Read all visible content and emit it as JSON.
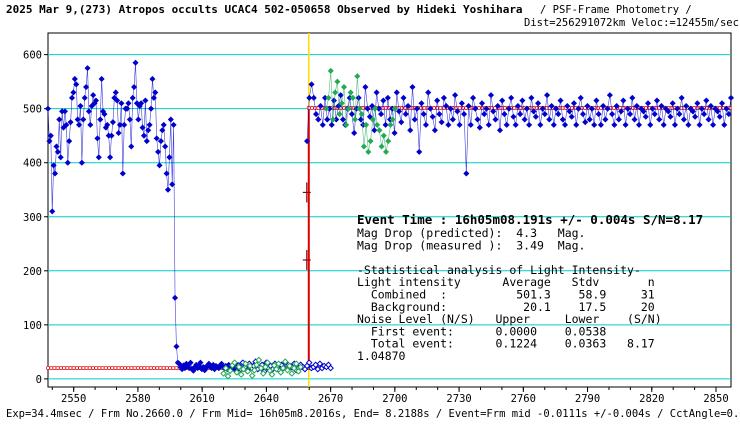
{
  "header": {
    "title": "2025 Mar 9,(273) Atropos occults UCAC4 502-050658 Observed by Hideki Yoshihara",
    "method": " / PSF-Frame Photometry /",
    "dist_veloc": "Dist=256291072km Veloc:=12455m/sec"
  },
  "event_time": "Event Time : 16h05m08.191s +/- 0.004s S/N=8.17",
  "stats_lines": [
    "Mag Drop (predicted):  4.3   Mag.",
    "Mag Drop (measured ):  3.49  Mag.",
    "",
    "-Statistical analysis of Light Intensity-",
    "Light intensity      Average   Stdv       n",
    "  Combined  :          501.3    58.9     31",
    "  Background:           20.1    17.5     20",
    "Noise Level (N/S)   Upper     Lower    (S/N)",
    "  First event:      0.0000    0.0538",
    "  Total event:      0.1224    0.0363   8.17",
    "1.04870"
  ],
  "footer": "Exp=34.4msec / Frm No.2660.0 / Frm Mid= 16h05m8.2016s, End= 8.2188s / Event=Frm mid -0.0111s +/-0.004s / CctAngle=0.00deg",
  "colors": {
    "main_series": "#0000cc",
    "comparison_series": "#22aa55",
    "model_line": "#dd0000",
    "gridlines": "#00cccc",
    "event_line": "#ffdd00"
  },
  "chart_data": {
    "type": "scatter",
    "xlim": [
      2538,
      2857
    ],
    "ylim": [
      -15,
      640
    ],
    "x_ticks": [
      2550,
      2580,
      2610,
      2640,
      2670,
      2700,
      2730,
      2760,
      2790,
      2820,
      2850
    ],
    "y_ticks": [
      0,
      100,
      200,
      300,
      400,
      500,
      600
    ],
    "grid": true,
    "event_frame": 2659.8,
    "series": [
      {
        "marker": "filled-diamond",
        "x_start": 2538,
        "x_end": 2627,
        "values": [
          500,
          440,
          450,
          310,
          395,
          380,
          430,
          420,
          480,
          410,
          495,
          465,
          495,
          470,
          400,
          440,
          475,
          520,
          530,
          555,
          545,
          480,
          470,
          505,
          400,
          480,
          520,
          540,
          575,
          495,
          470,
          505,
          525,
          510,
          515,
          445,
          410,
          480,
          555,
          495,
          490,
          465,
          470,
          450,
          410,
          450,
          475,
          520,
          530,
          515,
          455,
          470,
          510,
          380,
          470,
          500,
          500,
          510,
          480,
          430,
          520,
          540,
          585,
          510,
          480,
          505,
          510,
          465,
          450,
          515,
          440,
          460,
          470,
          500,
          555,
          520,
          530,
          445,
          420,
          395,
          440,
          460,
          470,
          430,
          380,
          350,
          410,
          480,
          360,
          470,
          150,
          60,
          30,
          28,
          22,
          18,
          25,
          20,
          28,
          24,
          20,
          30,
          18,
          15,
          22,
          26,
          20,
          24,
          30,
          18,
          22,
          16,
          20,
          25,
          28,
          22,
          20,
          26,
          18,
          24,
          22,
          20,
          25,
          28,
          22,
          20,
          24,
          18,
          26,
          22,
          20,
          24,
          18,
          22,
          26,
          20
        ],
        "note_values_by_index": true
      },
      {
        "marker": "open-diamond",
        "x_start": 2627,
        "x_end": 2670,
        "values": [
          25,
          18,
          30,
          22,
          15,
          28,
          20,
          24,
          32,
          18,
          22,
          26,
          14,
          30,
          20,
          24,
          18,
          28,
          22,
          16,
          26,
          20,
          30,
          18,
          24,
          22,
          28,
          16,
          20,
          26,
          22,
          18,
          24,
          30,
          20,
          22,
          26,
          18,
          28,
          20,
          24,
          22,
          26,
          20
        ]
      },
      {
        "marker": "filled-diamond",
        "x_start": 2659,
        "x_end": 2857,
        "values": [
          440,
          520,
          545,
          520,
          490,
          480,
          505,
          470,
          520,
          480,
          500,
          470,
          515,
          480,
          505,
          525,
          480,
          470,
          500,
          520,
          490,
          455,
          500,
          520,
          480,
          470,
          540,
          500,
          485,
          505,
          460,
          530,
          500,
          490,
          515,
          470,
          520,
          480,
          500,
          455,
          530,
          495,
          475,
          520,
          490,
          505,
          460,
          540,
          480,
          500,
          420,
          510,
          490,
          470,
          530,
          500,
          485,
          460,
          515,
          490,
          475,
          520,
          505,
          470,
          500,
          480,
          525,
          495,
          470,
          510,
          490,
          380,
          505,
          470,
          520,
          500,
          480,
          465,
          510,
          490,
          500,
          470,
          525,
          495,
          480,
          505,
          460,
          515,
          490,
          470,
          500,
          520,
          485,
          470,
          505,
          490,
          515,
          480,
          500,
          470,
          520,
          495,
          485,
          510,
          470,
          500,
          490,
          525,
          480,
          505,
          470,
          500,
          490,
          515,
          480,
          470,
          505,
          495,
          485,
          510,
          470,
          500,
          520,
          490,
          475,
          505,
          480,
          500,
          470,
          515,
          490,
          470,
          505,
          480,
          500,
          525,
          490,
          470,
          505,
          480,
          495,
          515,
          470,
          500,
          490,
          520,
          480,
          505,
          470,
          500,
          495,
          485,
          510,
          470,
          500,
          490,
          515,
          480,
          505,
          470,
          500,
          495,
          485,
          510,
          470,
          500,
          490,
          520,
          480,
          505,
          470,
          500,
          495,
          485,
          510,
          470,
          500,
          490,
          515,
          480,
          505,
          470,
          500,
          495,
          485,
          510,
          470,
          500,
          490,
          520
        ]
      },
      {
        "marker": "open-diamond-green",
        "x_start": 2620,
        "x_end": 2656,
        "values": [
          10,
          20,
          5,
          15,
          25,
          30,
          12,
          22,
          8,
          18,
          28,
          14,
          24,
          6,
          16,
          26,
          35,
          20,
          10,
          22,
          30,
          15,
          8,
          25,
          18,
          28,
          12,
          20,
          32,
          16,
          24,
          10,
          20,
          28,
          14,
          22
        ]
      },
      {
        "marker": "filled-diamond-green",
        "x_start": 2668,
        "x_end": 2700,
        "values": [
          500,
          520,
          570,
          480,
          530,
          550,
          490,
          510,
          540,
          470,
          500,
          530,
          520,
          480,
          560,
          500,
          490,
          430,
          470,
          420,
          440,
          480,
          500,
          470,
          460,
          430,
          450,
          420,
          440,
          470,
          480,
          500
        ]
      }
    ],
    "model": {
      "pre_level": 20.1,
      "post_level": 501.3,
      "drop_start": 2538,
      "drop_end": 2659.8,
      "plateau_end": 2857
    },
    "error_bars": [
      {
        "x": 2659.8,
        "y": 345
      },
      {
        "x": 2659.8,
        "y": 220
      }
    ]
  }
}
